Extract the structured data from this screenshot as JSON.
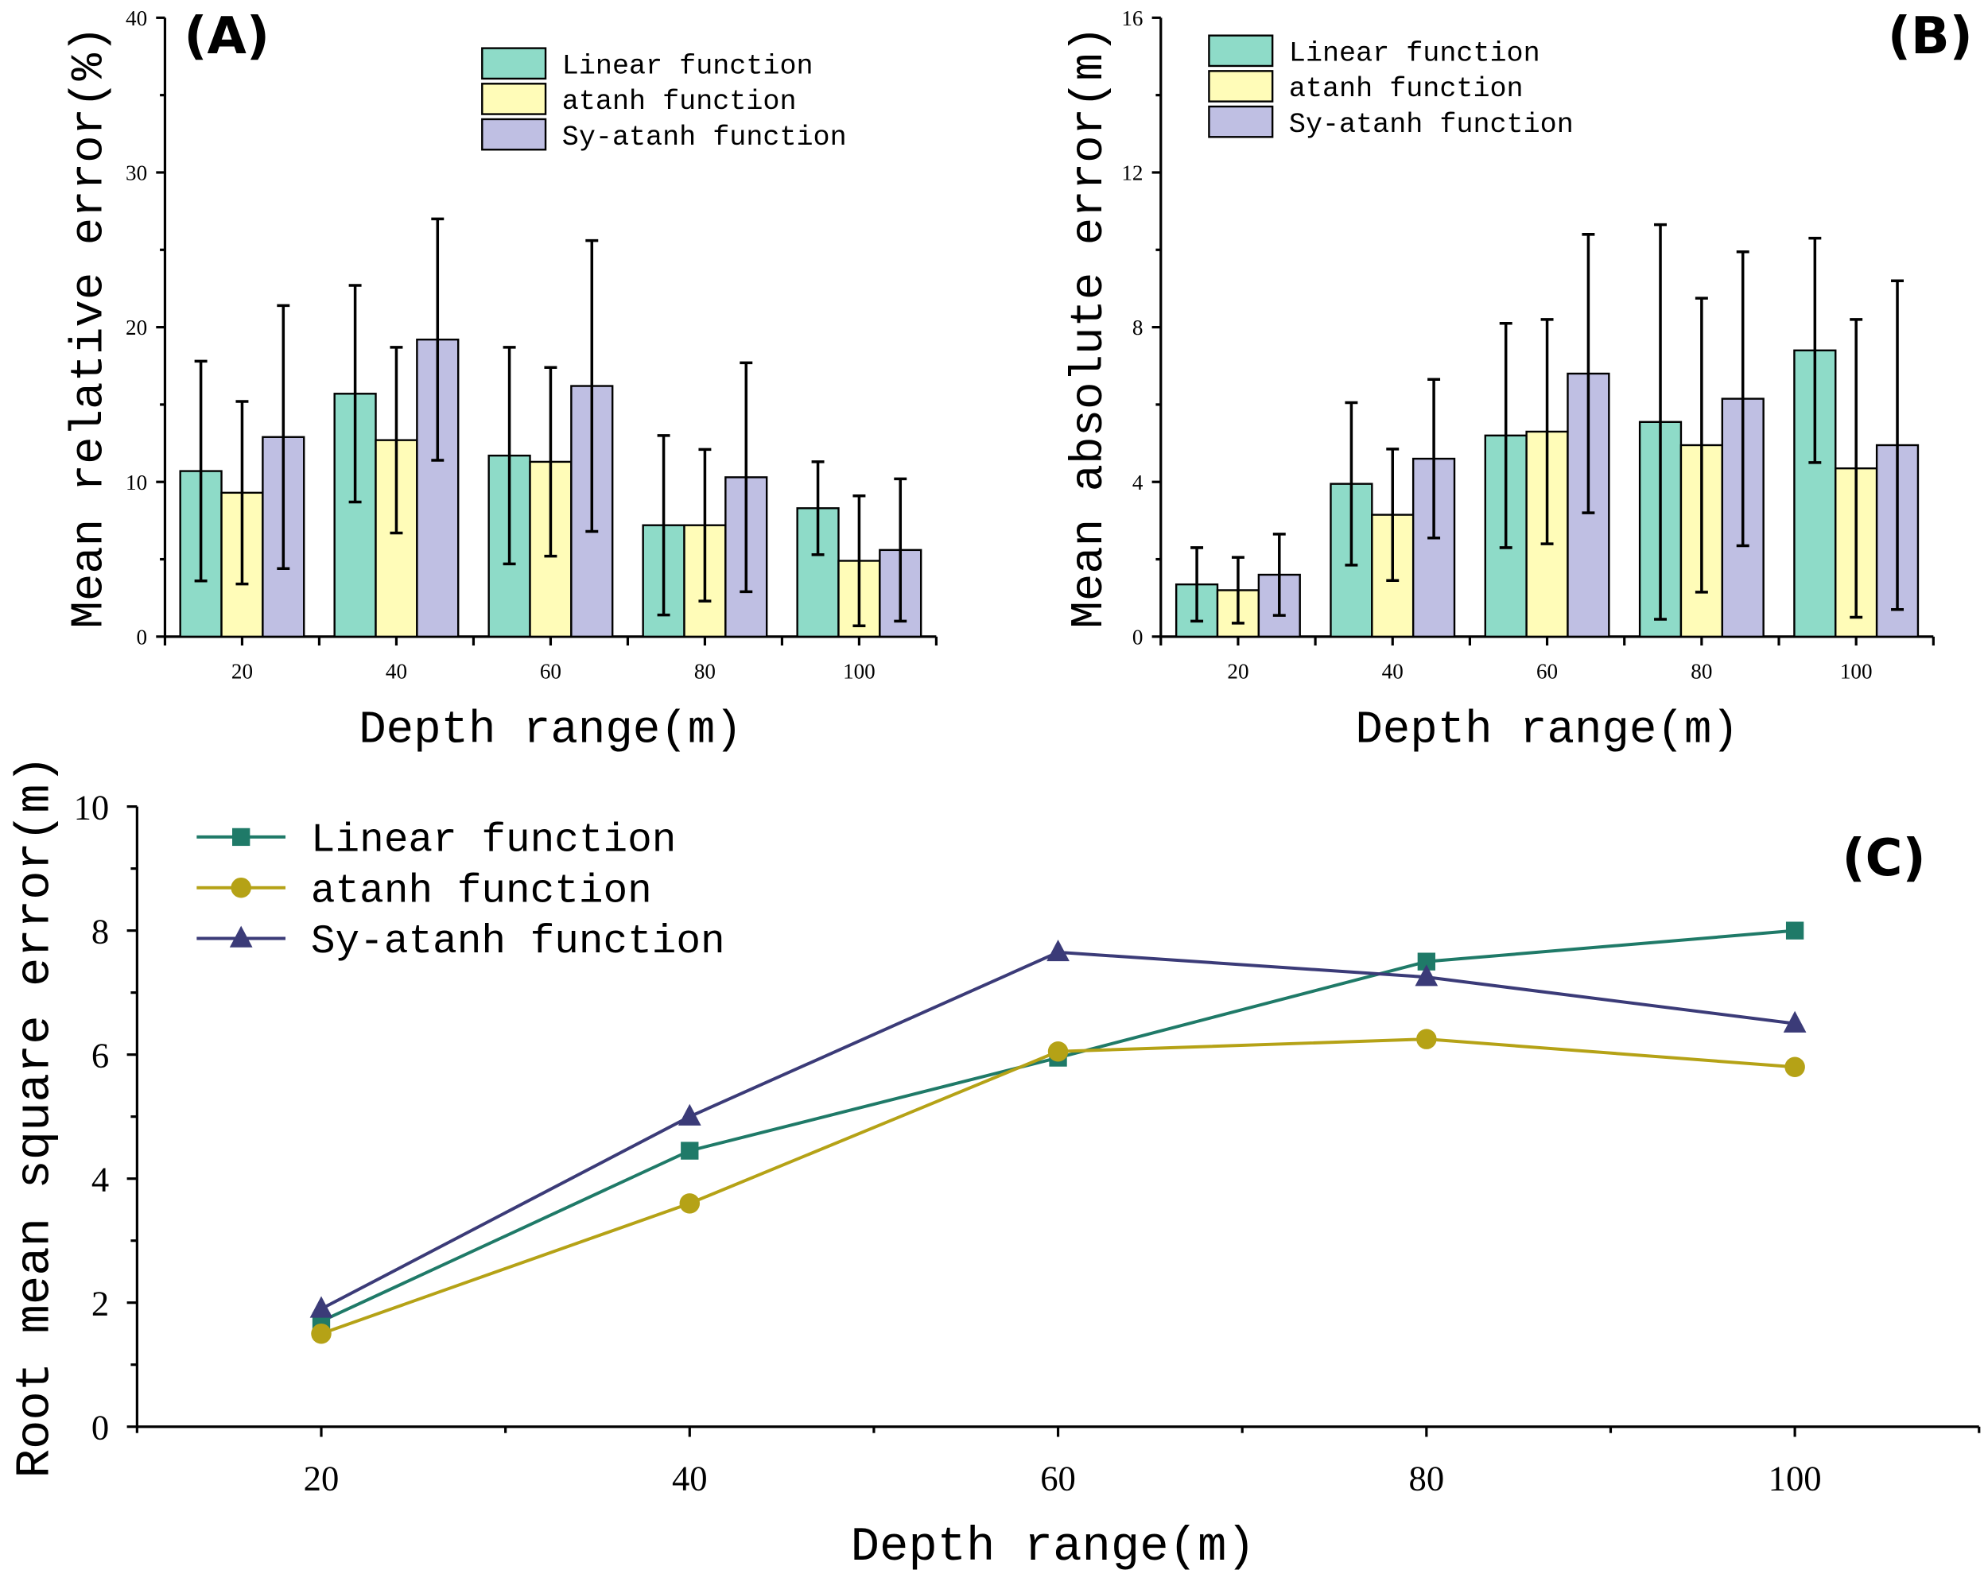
{
  "colors": {
    "linear_bar": "#8edbc8",
    "atanh_bar": "#fffcb8",
    "sy_bar": "#bfbfe3",
    "linear_line": "#1f7a68",
    "atanh_line": "#b5a216",
    "sy_line": "#3b3b78"
  },
  "chart_data": [
    {
      "type": "bar",
      "panel_label": "(A)",
      "xlabel": "Depth range(m)",
      "ylabel": "Mean relative error(%)",
      "categories": [
        "20",
        "40",
        "60",
        "80",
        "100"
      ],
      "ylim": [
        0,
        40
      ],
      "yticks": [
        "0",
        "10",
        "20",
        "30",
        "40"
      ],
      "legend_position": "top-center",
      "series": [
        {
          "name": "Linear function",
          "values": [
            10.7,
            15.7,
            11.7,
            7.2,
            8.3
          ],
          "errors": [
            7.1,
            7.0,
            7.0,
            5.8,
            3.0
          ]
        },
        {
          "name": "atanh function",
          "values": [
            9.3,
            12.7,
            11.3,
            7.2,
            4.9
          ],
          "errors": [
            5.9,
            6.0,
            6.1,
            4.9,
            4.2
          ]
        },
        {
          "name": "Sy-atanh function",
          "values": [
            12.9,
            19.2,
            16.2,
            10.3,
            5.6
          ],
          "errors": [
            8.5,
            7.8,
            9.4,
            7.4,
            4.6
          ]
        }
      ]
    },
    {
      "type": "bar",
      "panel_label": "(B)",
      "xlabel": "Depth range(m)",
      "ylabel": "Mean absolute error(m)",
      "categories": [
        "20",
        "40",
        "60",
        "80",
        "100"
      ],
      "ylim": [
        0,
        16
      ],
      "yticks": [
        "0",
        "4",
        "8",
        "12",
        "16"
      ],
      "legend_position": "top-left",
      "series": [
        {
          "name": "Linear function",
          "values": [
            1.35,
            3.95,
            5.2,
            5.55,
            7.4
          ],
          "errors": [
            0.95,
            2.1,
            2.9,
            5.1,
            2.9
          ]
        },
        {
          "name": "atanh function",
          "values": [
            1.2,
            3.15,
            5.3,
            4.95,
            4.35
          ],
          "errors": [
            0.85,
            1.7,
            2.9,
            3.8,
            3.85
          ]
        },
        {
          "name": "Sy-atanh function",
          "values": [
            1.6,
            4.6,
            6.8,
            6.15,
            4.95
          ],
          "errors": [
            1.05,
            2.05,
            3.6,
            3.8,
            4.25
          ]
        }
      ]
    },
    {
      "type": "line",
      "panel_label": "(C)",
      "xlabel": "Depth range(m)",
      "ylabel": "Root mean square error(m)",
      "x": [
        20,
        40,
        60,
        80,
        100
      ],
      "xticks": [
        "20",
        "40",
        "60",
        "80",
        "100"
      ],
      "xlim": [
        10,
        110
      ],
      "ylim": [
        0,
        10
      ],
      "yticks": [
        "0",
        "2",
        "4",
        "6",
        "8",
        "10"
      ],
      "legend_position": "top-left",
      "series": [
        {
          "name": "Linear function",
          "marker": "square",
          "values": [
            1.7,
            4.45,
            5.95,
            7.5,
            8.0
          ]
        },
        {
          "name": "atanh function",
          "marker": "circle",
          "values": [
            1.5,
            3.6,
            6.05,
            6.25,
            5.8
          ]
        },
        {
          "name": "Sy-atanh function",
          "marker": "triangle",
          "values": [
            1.9,
            5.0,
            7.65,
            7.25,
            6.5
          ]
        }
      ]
    }
  ]
}
